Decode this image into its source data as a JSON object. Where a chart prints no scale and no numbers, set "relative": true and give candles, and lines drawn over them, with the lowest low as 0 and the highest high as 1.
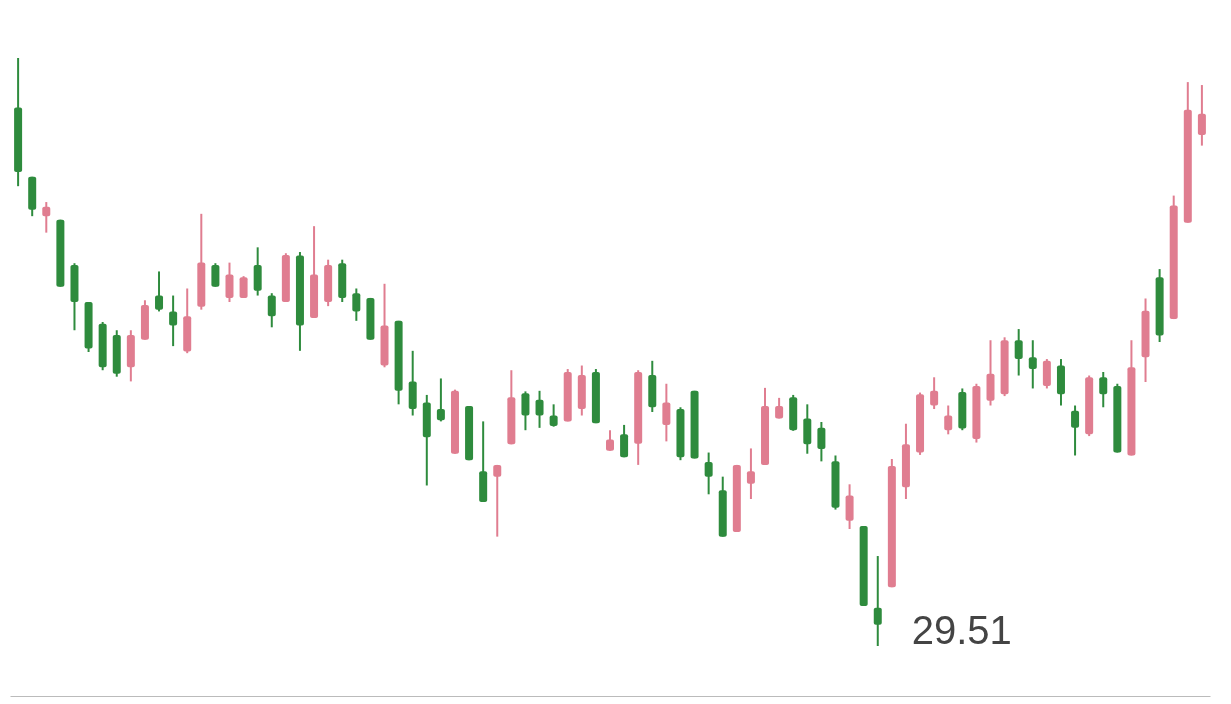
{
  "chart_data": {
    "type": "candlestick",
    "relative": true,
    "categories": [
      null,
      null,
      null,
      null,
      null,
      null,
      null,
      null,
      null,
      null,
      null,
      null,
      null,
      null,
      null,
      null,
      null,
      null,
      null,
      null,
      null,
      null,
      null,
      null,
      null,
      null,
      null,
      null,
      null,
      null,
      null,
      null,
      null,
      null,
      null,
      null,
      null,
      null,
      null,
      null,
      null,
      null,
      null,
      null,
      null,
      null,
      null,
      null,
      null,
      null,
      null,
      null,
      null,
      null,
      null,
      null,
      null,
      null,
      null,
      null,
      null,
      null,
      null,
      null,
      null,
      null,
      null,
      null,
      null,
      null,
      null,
      null,
      null,
      null,
      null,
      null,
      null,
      null,
      null,
      null,
      null,
      null,
      null,
      null,
      null
    ],
    "ohlc": [
      [
        0.916,
        1,
        0.782,
        0.806
      ],
      [
        0.798,
        0.798,
        0.731,
        0.742
      ],
      [
        0.731,
        0.755,
        0.703,
        0.747
      ],
      [
        0.725,
        0.725,
        0.611,
        0.611
      ],
      [
        0.648,
        0.651,
        0.537,
        0.585
      ],
      [
        0.585,
        0.585,
        0.5,
        0.506
      ],
      [
        0.548,
        0.551,
        0.469,
        0.474
      ],
      [
        0.529,
        0.537,
        0.458,
        0.463
      ],
      [
        0.474,
        0.537,
        0.45,
        0.529
      ],
      [
        0.521,
        0.588,
        0.521,
        0.58
      ],
      [
        0.596,
        0.637,
        0.569,
        0.572
      ],
      [
        0.569,
        0.596,
        0.51,
        0.545
      ],
      [
        0.501,
        0.608,
        0.498,
        0.561
      ],
      [
        0.577,
        0.735,
        0.572,
        0.652
      ],
      [
        0.648,
        0.651,
        0.611,
        0.611
      ],
      [
        0.592,
        0.652,
        0.585,
        0.632
      ],
      [
        0.592,
        0.629,
        0.592,
        0.627
      ],
      [
        0.648,
        0.678,
        0.596,
        0.604
      ],
      [
        0.596,
        0.6,
        0.542,
        0.561
      ],
      [
        0.585,
        0.668,
        0.585,
        0.665
      ],
      [
        0.664,
        0.67,
        0.502,
        0.545
      ],
      [
        0.558,
        0.714,
        0.558,
        0.632
      ],
      [
        0.585,
        0.657,
        0.578,
        0.648
      ],
      [
        0.651,
        0.657,
        0.585,
        0.592
      ],
      [
        0.6,
        0.608,
        0.553,
        0.569
      ],
      [
        0.592,
        0.592,
        0.521,
        0.521
      ],
      [
        0.477,
        0.616,
        0.474,
        0.545
      ],
      [
        0.553,
        0.553,
        0.411,
        0.434
      ],
      [
        0.45,
        0.502,
        0.392,
        0.403
      ],
      [
        0.414,
        0.427,
        0.273,
        0.355
      ],
      [
        0.403,
        0.455,
        0.382,
        0.384
      ],
      [
        0.327,
        0.436,
        0.327,
        0.434
      ],
      [
        0.408,
        0.408,
        0.316,
        0.316
      ],
      [
        0.297,
        0.382,
        0.245,
        0.245
      ],
      [
        0.288,
        0.308,
        0.186,
        0.308
      ],
      [
        0.343,
        0.469,
        0.343,
        0.423
      ],
      [
        0.43,
        0.433,
        0.367,
        0.392
      ],
      [
        0.419,
        0.434,
        0.371,
        0.392
      ],
      [
        0.392,
        0.411,
        0.373,
        0.374
      ],
      [
        0.382,
        0.471,
        0.382,
        0.466
      ],
      [
        0.403,
        0.477,
        0.392,
        0.461
      ],
      [
        0.466,
        0.471,
        0.379,
        0.379
      ],
      [
        0.332,
        0.367,
        0.332,
        0.351
      ],
      [
        0.36,
        0.376,
        0.321,
        0.321
      ],
      [
        0.344,
        0.469,
        0.308,
        0.466
      ],
      [
        0.461,
        0.485,
        0.398,
        0.406
      ],
      [
        0.376,
        0.446,
        0.348,
        0.414
      ],
      [
        0.403,
        0.406,
        0.316,
        0.321
      ],
      [
        0.434,
        0.434,
        0.319,
        0.319
      ],
      [
        0.313,
        0.329,
        0.258,
        0.288
      ],
      [
        0.265,
        0.288,
        0.186,
        0.186
      ],
      [
        0.194,
        0.308,
        0.194,
        0.308
      ],
      [
        0.276,
        0.336,
        0.25,
        0.297
      ],
      [
        0.308,
        0.439,
        0.308,
        0.408
      ],
      [
        0.387,
        0.422,
        0.387,
        0.408
      ],
      [
        0.423,
        0.427,
        0.366,
        0.367
      ],
      [
        0.387,
        0.411,
        0.327,
        0.343
      ],
      [
        0.371,
        0.381,
        0.314,
        0.335
      ],
      [
        0.314,
        0.324,
        0.232,
        0.235
      ],
      [
        0.213,
        0.275,
        0.199,
        0.256
      ],
      [
        0.204,
        0.204,
        0.068,
        0.068
      ],
      [
        0.065,
        0.153,
        0,
        0.036
      ],
      [
        0.1,
        0.318,
        0.1,
        0.306
      ],
      [
        0.27,
        0.378,
        0.25,
        0.343
      ],
      [
        0.329,
        0.431,
        0.325,
        0.428
      ],
      [
        0.409,
        0.457,
        0.403,
        0.434
      ],
      [
        0.367,
        0.409,
        0.36,
        0.392
      ],
      [
        0.432,
        0.438,
        0.367,
        0.37
      ],
      [
        0.352,
        0.446,
        0.346,
        0.442
      ],
      [
        0.417,
        0.52,
        0.409,
        0.463
      ],
      [
        0.428,
        0.525,
        0.425,
        0.52
      ],
      [
        0.52,
        0.539,
        0.46,
        0.488
      ],
      [
        0.491,
        0.52,
        0.438,
        0.471
      ],
      [
        0.442,
        0.488,
        0.438,
        0.485
      ],
      [
        0.477,
        0.488,
        0.409,
        0.428
      ],
      [
        0.4,
        0.409,
        0.324,
        0.371
      ],
      [
        0.36,
        0.46,
        0.357,
        0.457
      ],
      [
        0.457,
        0.466,
        0.406,
        0.428
      ],
      [
        0.442,
        0.446,
        0.329,
        0.329
      ],
      [
        0.324,
        0.52,
        0.324,
        0.474
      ],
      [
        0.491,
        0.591,
        0.449,
        0.57
      ],
      [
        0.627,
        0.641,
        0.517,
        0.528
      ],
      [
        0.556,
        0.766,
        0.556,
        0.749
      ],
      [
        0.72,
        0.959,
        0.72,
        0.912
      ],
      [
        0.869,
        0.954,
        0.851,
        0.905
      ]
    ],
    "colors": [
      "#2e8b3d",
      "#2e8b3d",
      "#e07d90",
      "#2e8b3d",
      "#2e8b3d",
      "#2e8b3d",
      "#2e8b3d",
      "#2e8b3d",
      "#e07d90",
      "#e07d90",
      "#2e8b3d",
      "#2e8b3d",
      "#e07d90",
      "#e07d90",
      "#2e8b3d",
      "#e07d90",
      "#e07d90",
      "#2e8b3d",
      "#2e8b3d",
      "#e07d90",
      "#2e8b3d",
      "#e07d90",
      "#e07d90",
      "#2e8b3d",
      "#2e8b3d",
      "#2e8b3d",
      "#e07d90",
      "#2e8b3d",
      "#2e8b3d",
      "#2e8b3d",
      "#2e8b3d",
      "#e07d90",
      "#2e8b3d",
      "#2e8b3d",
      "#e07d90",
      "#e07d90",
      "#2e8b3d",
      "#2e8b3d",
      "#2e8b3d",
      "#e07d90",
      "#e07d90",
      "#2e8b3d",
      "#e07d90",
      "#2e8b3d",
      "#e07d90",
      "#2e8b3d",
      "#e07d90",
      "#2e8b3d",
      "#2e8b3d",
      "#2e8b3d",
      "#2e8b3d",
      "#e07d90",
      "#e07d90",
      "#e07d90",
      "#e07d90",
      "#2e8b3d",
      "#2e8b3d",
      "#2e8b3d",
      "#2e8b3d",
      "#e07d90",
      "#2e8b3d",
      "#2e8b3d",
      "#e07d90",
      "#e07d90",
      "#e07d90",
      "#e07d90",
      "#e07d90",
      "#2e8b3d",
      "#e07d90",
      "#e07d90",
      "#e07d90",
      "#2e8b3d",
      "#2e8b3d",
      "#e07d90",
      "#2e8b3d",
      "#2e8b3d",
      "#e07d90",
      "#2e8b3d",
      "#2e8b3d",
      "#e07d90",
      "#e07d90",
      "#2e8b3d",
      "#e07d90",
      "#e07d90",
      "#e07d90"
    ],
    "annotations": [
      "29.51"
    ]
  }
}
